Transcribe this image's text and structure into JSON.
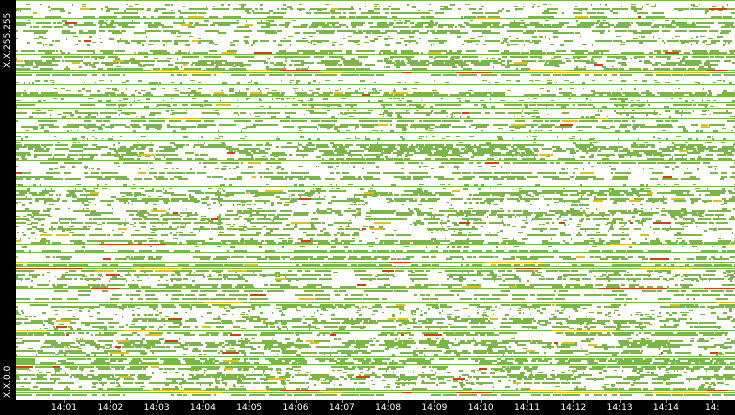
{
  "chart_data": {
    "type": "heatmap",
    "y_axis": {
      "top_label": "X.X.255.255",
      "bottom_label": "X.X.0.0",
      "range": [
        "X.X.0.0",
        "X.X.255.255"
      ]
    },
    "x_axis": {
      "tick_labels": [
        "14:01",
        "14:02",
        "14:03",
        "14:04",
        "14:05",
        "14:06",
        "14:07",
        "14:08",
        "14:09",
        "14:10",
        "14:11",
        "14:12",
        "14:13",
        "14:14",
        "14:"
      ],
      "range": [
        "14:00",
        "14:15"
      ]
    },
    "color_scale": {
      "empty": "#ffffff",
      "low": "#7ab648",
      "medium": "#e0c020",
      "high": "#d04010"
    },
    "density": {
      "green_fraction": 0.55,
      "yellow_fraction": 0.03,
      "red_fraction": 0.01
    },
    "grid": false
  }
}
